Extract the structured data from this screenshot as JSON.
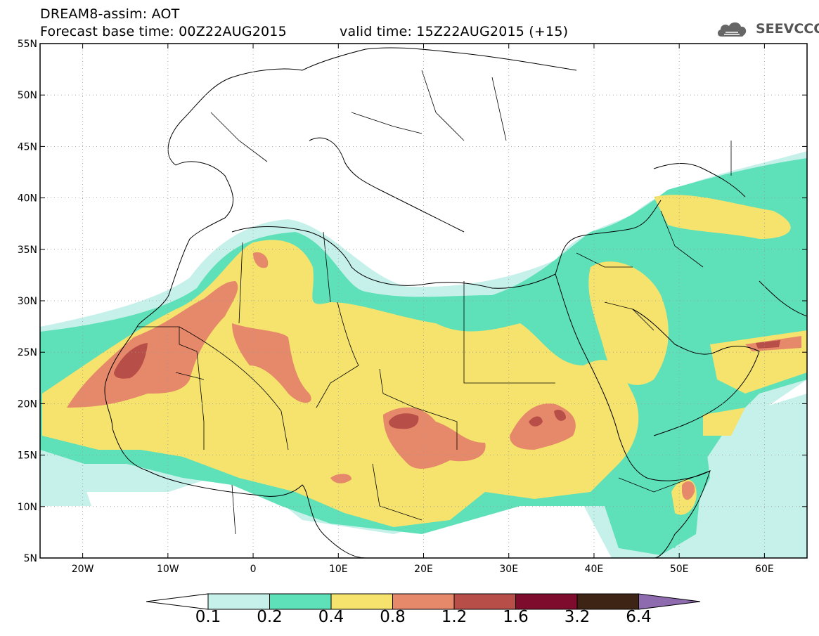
{
  "header": {
    "line1": "DREAM8-assim: AOT",
    "line2": "Forecast base time: 00Z22AUG2015",
    "valid": "valid time: 15Z22AUG2015 (+15)",
    "logo_text": "SEEVCCC",
    "logo_icon": "cloud-icon"
  },
  "map": {
    "lat_ticks": [
      "55N",
      "50N",
      "45N",
      "40N",
      "35N",
      "30N",
      "25N",
      "20N",
      "15N",
      "10N",
      "5N"
    ],
    "lon_ticks": [
      "20W",
      "10W",
      "0",
      "10E",
      "20E",
      "30E",
      "40E",
      "50E",
      "60E"
    ],
    "extent": {
      "lon_min": -25,
      "lon_max": 65,
      "lat_min": 5,
      "lat_max": 55
    },
    "grid": "dotted"
  },
  "colorbar": {
    "labels": [
      "0.1",
      "0.2",
      "0.4",
      "0.8",
      "1.2",
      "1.6",
      "3.2",
      "6.4"
    ],
    "colors": {
      "c1": "#c6f0ea",
      "c2": "#5ee0b8",
      "c3": "#f5e36e",
      "c4": "#e6896a",
      "c5": "#b84e48",
      "c6": "#7e0c2c",
      "c7": "#3e2414",
      "over": "#8e6aae",
      "under": "#ffffff"
    }
  }
}
